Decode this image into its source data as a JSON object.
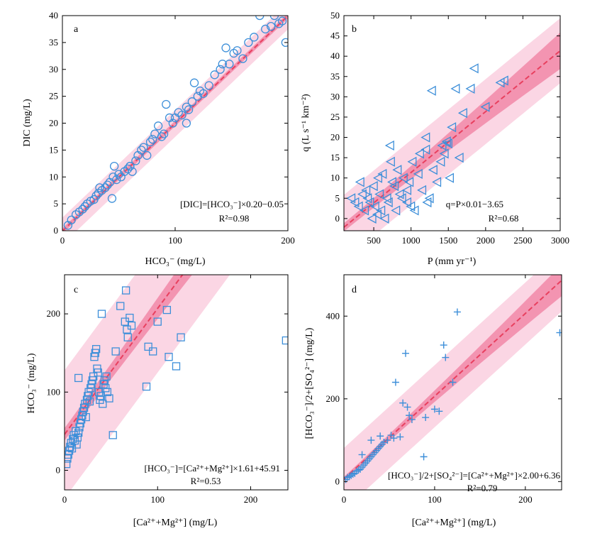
{
  "colors": {
    "marker": "#3d8fd9",
    "fit_line": "#e8405f",
    "conf_band": "#f07ea0",
    "pred_band": "#fbd6e4"
  },
  "chart_data": [
    {
      "panel": "a",
      "type": "scatter",
      "marker": "circle",
      "xlabel": "HCO₃⁻ (mg/L)",
      "ylabel": "DIC (mg/L)",
      "xlim": [
        0,
        200
      ],
      "ylim": [
        0,
        40
      ],
      "xticks": [
        "0",
        "100",
        "200"
      ],
      "yticks": [
        "0",
        "5",
        "10",
        "15",
        "20",
        "25",
        "30",
        "35",
        "40"
      ],
      "equation": "[DIC]=[HCO₃⁻]×0.20−0.05",
      "r2": "R²=0.98",
      "fit": {
        "slope": 0.2,
        "intercept": -0.05
      },
      "bands": {
        "conf_half": [
          0.5,
          0.5
        ],
        "pred_half": 2.5
      },
      "points": [
        [
          5,
          1
        ],
        [
          8,
          2
        ],
        [
          12,
          3
        ],
        [
          15,
          3.5
        ],
        [
          18,
          4
        ],
        [
          20,
          4.5
        ],
        [
          22,
          5
        ],
        [
          25,
          5.5
        ],
        [
          28,
          5.8
        ],
        [
          30,
          6.5
        ],
        [
          32,
          7
        ],
        [
          33,
          8
        ],
        [
          35,
          7.5
        ],
        [
          38,
          8
        ],
        [
          40,
          8.5
        ],
        [
          42,
          9
        ],
        [
          45,
          10
        ],
        [
          46,
          12
        ],
        [
          48,
          9.5
        ],
        [
          50,
          10.5
        ],
        [
          52,
          10
        ],
        [
          55,
          11
        ],
        [
          58,
          11.5
        ],
        [
          60,
          12
        ],
        [
          62,
          11
        ],
        [
          65,
          13
        ],
        [
          67,
          14
        ],
        [
          70,
          15
        ],
        [
          72,
          15.5
        ],
        [
          75,
          14
        ],
        [
          78,
          16.5
        ],
        [
          80,
          17
        ],
        [
          82,
          18
        ],
        [
          85,
          19.5
        ],
        [
          88,
          17.5
        ],
        [
          90,
          18
        ],
        [
          92,
          23.5
        ],
        [
          95,
          21
        ],
        [
          98,
          20
        ],
        [
          100,
          21
        ],
        [
          103,
          22
        ],
        [
          106,
          21.5
        ],
        [
          110,
          23
        ],
        [
          112,
          22.5
        ],
        [
          115,
          24
        ],
        [
          117,
          27.5
        ],
        [
          120,
          25
        ],
        [
          122,
          26
        ],
        [
          125,
          25.5
        ],
        [
          130,
          27
        ],
        [
          135,
          29
        ],
        [
          140,
          30
        ],
        [
          142,
          31
        ],
        [
          145,
          34
        ],
        [
          148,
          31
        ],
        [
          152,
          33
        ],
        [
          155,
          33.5
        ],
        [
          160,
          32
        ],
        [
          165,
          35
        ],
        [
          170,
          36
        ],
        [
          175,
          40
        ],
        [
          180,
          37.5
        ],
        [
          185,
          38
        ],
        [
          188,
          40
        ],
        [
          192,
          38.5
        ],
        [
          195,
          39
        ],
        [
          198,
          35
        ],
        [
          44,
          6
        ],
        [
          60,
          12
        ],
        [
          110,
          20
        ]
      ]
    },
    {
      "panel": "b",
      "type": "scatter",
      "marker": "triangle-left",
      "xlabel": "P (mm yr⁻¹)",
      "ylabel": "q (L s⁻¹ km⁻²)",
      "xlim": [
        100,
        3000
      ],
      "ylim": [
        -3,
        50
      ],
      "xticks": [
        "500",
        "1000",
        "1500",
        "2000",
        "2500",
        "3000"
      ],
      "yticks": [
        "0",
        "5",
        "10",
        "15",
        "20",
        "25",
        "30",
        "35",
        "40",
        "45",
        "50"
      ],
      "equation": "q=P×0.01−3.65",
      "r2": "R²=0.68",
      "fit": {
        "slope": 0.015,
        "intercept": -3.65
      },
      "bands": {
        "conf_half": [
          1.0,
          4.5
        ],
        "pred_half": 8
      },
      "points": [
        [
          200,
          5
        ],
        [
          250,
          4
        ],
        [
          300,
          3
        ],
        [
          320,
          9
        ],
        [
          350,
          6
        ],
        [
          380,
          2
        ],
        [
          400,
          7
        ],
        [
          420,
          5
        ],
        [
          450,
          4
        ],
        [
          480,
          0
        ],
        [
          500,
          8
        ],
        [
          520,
          3
        ],
        [
          550,
          1
        ],
        [
          560,
          10
        ],
        [
          580,
          6
        ],
        [
          600,
          2
        ],
        [
          620,
          11
        ],
        [
          650,
          0
        ],
        [
          680,
          5
        ],
        [
          700,
          4
        ],
        [
          720,
          18
        ],
        [
          730,
          14
        ],
        [
          750,
          9
        ],
        [
          780,
          8
        ],
        [
          800,
          2
        ],
        [
          820,
          12
        ],
        [
          850,
          6
        ],
        [
          880,
          5
        ],
        [
          900,
          10
        ],
        [
          950,
          4
        ],
        [
          980,
          9
        ],
        [
          1000,
          3
        ],
        [
          1020,
          14
        ],
        [
          1050,
          2
        ],
        [
          1100,
          11
        ],
        [
          1120,
          16
        ],
        [
          1150,
          7
        ],
        [
          1200,
          17
        ],
        [
          1220,
          4
        ],
        [
          1250,
          5
        ],
        [
          1280,
          31.5
        ],
        [
          1300,
          12
        ],
        [
          1350,
          9
        ],
        [
          1400,
          14
        ],
        [
          1420,
          18
        ],
        [
          1450,
          16
        ],
        [
          1480,
          19
        ],
        [
          1500,
          18.5
        ],
        [
          1520,
          10
        ],
        [
          1550,
          22.5
        ],
        [
          1600,
          32
        ],
        [
          1650,
          15
        ],
        [
          1700,
          26
        ],
        [
          1800,
          32
        ],
        [
          1850,
          37
        ],
        [
          2000,
          27.5
        ],
        [
          2200,
          33.5
        ],
        [
          2250,
          34
        ],
        [
          1200,
          20
        ],
        [
          950,
          7
        ]
      ]
    },
    {
      "panel": "c",
      "type": "scatter",
      "marker": "square",
      "xlabel": "[Ca²⁺+Mg²⁺] (mg/L)",
      "ylabel": "HCO₃⁻ (mg/L)",
      "xlim": [
        0,
        240
      ],
      "ylim": [
        -25,
        250
      ],
      "xticks": [
        "0",
        "100",
        "200"
      ],
      "yticks": [
        "0",
        "100",
        "200"
      ],
      "equation": "[HCO₃⁻]=[Ca²⁺+Mg²⁺]×1.61+45.91",
      "r2": "R²=0.53",
      "fit": {
        "slope": 1.61,
        "intercept": 45.91
      },
      "bands": {
        "conf_half": [
          8,
          28
        ],
        "pred_half": 82
      },
      "points": [
        [
          2,
          8
        ],
        [
          3,
          15
        ],
        [
          4,
          20
        ],
        [
          5,
          25
        ],
        [
          6,
          30
        ],
        [
          7,
          35
        ],
        [
          8,
          28
        ],
        [
          9,
          40
        ],
        [
          10,
          45
        ],
        [
          11,
          38
        ],
        [
          12,
          50
        ],
        [
          13,
          33
        ],
        [
          14,
          42
        ],
        [
          15,
          48
        ],
        [
          16,
          55
        ],
        [
          17,
          60
        ],
        [
          18,
          65
        ],
        [
          19,
          70
        ],
        [
          20,
          75
        ],
        [
          21,
          80
        ],
        [
          22,
          85
        ],
        [
          23,
          68
        ],
        [
          24,
          90
        ],
        [
          25,
          95
        ],
        [
          26,
          100
        ],
        [
          27,
          88
        ],
        [
          28,
          105
        ],
        [
          29,
          110
        ],
        [
          30,
          115
        ],
        [
          31,
          120
        ],
        [
          32,
          145
        ],
        [
          33,
          150
        ],
        [
          34,
          155
        ],
        [
          35,
          130
        ],
        [
          36,
          125
        ],
        [
          37,
          100
        ],
        [
          38,
          90
        ],
        [
          39,
          95
        ],
        [
          40,
          200
        ],
        [
          41,
          85
        ],
        [
          42,
          110
        ],
        [
          43,
          115
        ],
        [
          44,
          105
        ],
        [
          45,
          120
        ],
        [
          46,
          100
        ],
        [
          48,
          92
        ],
        [
          52,
          45
        ],
        [
          55,
          152
        ],
        [
          60,
          210
        ],
        [
          65,
          190
        ],
        [
          66,
          230
        ],
        [
          67,
          180
        ],
        [
          68,
          170
        ],
        [
          70,
          195
        ],
        [
          72,
          185
        ],
        [
          88,
          107
        ],
        [
          90,
          158
        ],
        [
          95,
          152
        ],
        [
          100,
          190
        ],
        [
          110,
          205
        ],
        [
          112,
          145
        ],
        [
          120,
          133
        ],
        [
          125,
          170
        ],
        [
          238,
          166
        ],
        [
          15,
          118
        ]
      ]
    },
    {
      "panel": "d",
      "type": "scatter",
      "marker": "plus",
      "xlabel": "[Ca²⁺+Mg²⁺] (mg/L)",
      "ylabel": "[HCO₃⁻]/2+[SO₄²⁻] (mg/L)",
      "xlim": [
        0,
        240
      ],
      "ylim": [
        -20,
        500
      ],
      "xticks": [
        "0",
        "100",
        "200"
      ],
      "yticks": [
        "0",
        "200",
        "400"
      ],
      "equation": "[HCO₃⁻]/2+[SO₄²⁻]=[Ca²⁺+Mg²⁺]×2.00+6.36",
      "r2": "R²=0.79",
      "fit": {
        "slope": 2.0,
        "intercept": 6.36
      },
      "bands": {
        "conf_half": [
          5,
          38
        ],
        "pred_half": 75
      },
      "points": [
        [
          2,
          5
        ],
        [
          4,
          10
        ],
        [
          6,
          12
        ],
        [
          8,
          15
        ],
        [
          10,
          18
        ],
        [
          12,
          20
        ],
        [
          14,
          25
        ],
        [
          16,
          28
        ],
        [
          18,
          30
        ],
        [
          20,
          35
        ],
        [
          22,
          40
        ],
        [
          24,
          45
        ],
        [
          26,
          50
        ],
        [
          28,
          55
        ],
        [
          30,
          60
        ],
        [
          32,
          65
        ],
        [
          34,
          70
        ],
        [
          36,
          75
        ],
        [
          38,
          80
        ],
        [
          40,
          85
        ],
        [
          42,
          90
        ],
        [
          44,
          95
        ],
        [
          48,
          100
        ],
        [
          52,
          112
        ],
        [
          55,
          105
        ],
        [
          57,
          240
        ],
        [
          62,
          108
        ],
        [
          65,
          190
        ],
        [
          68,
          310
        ],
        [
          70,
          180
        ],
        [
          72,
          160
        ],
        [
          75,
          150
        ],
        [
          88,
          60
        ],
        [
          90,
          155
        ],
        [
          100,
          175
        ],
        [
          105,
          170
        ],
        [
          110,
          330
        ],
        [
          112,
          300
        ],
        [
          120,
          240
        ],
        [
          125,
          410
        ],
        [
          238,
          360
        ],
        [
          20,
          65
        ],
        [
          30,
          100
        ],
        [
          40,
          110
        ]
      ]
    }
  ]
}
